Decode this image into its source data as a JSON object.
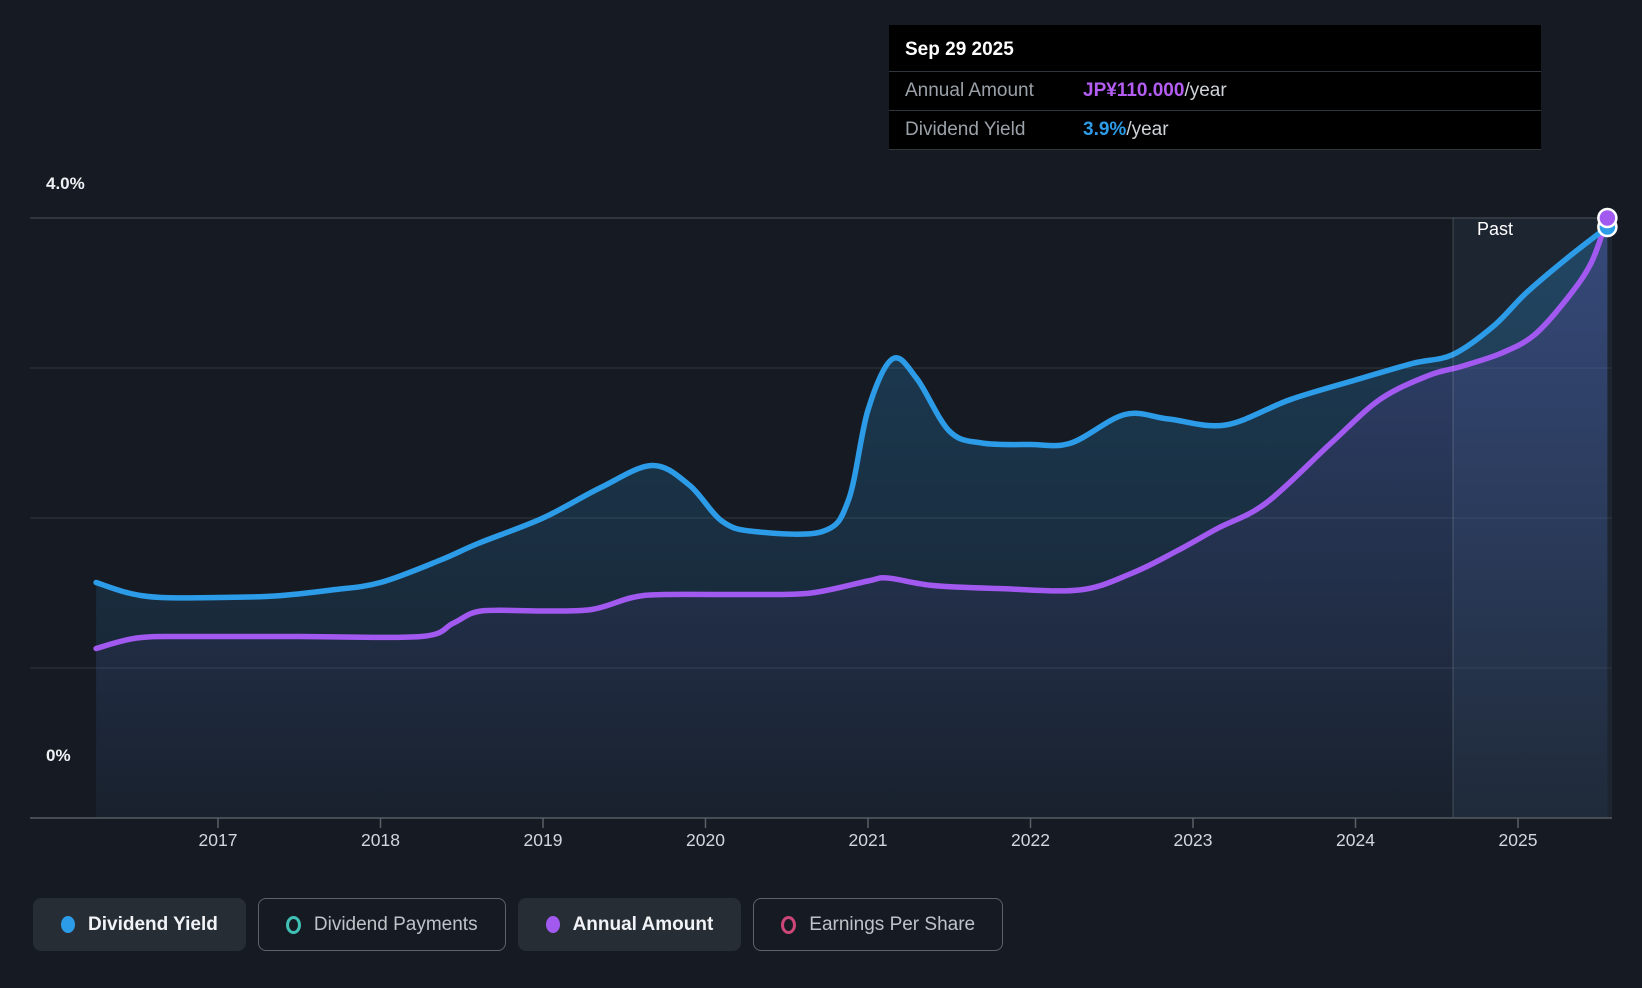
{
  "tooltip": {
    "date": "Sep 29 2025",
    "rows": [
      {
        "label": "Annual Amount",
        "value": "JP¥110.000",
        "suffix": "/year",
        "color": "#b45df2"
      },
      {
        "label": "Dividend Yield",
        "value": "3.9%",
        "suffix": "/year",
        "color": "#2d9ce8"
      }
    ]
  },
  "legend": {
    "items": [
      {
        "label": "Dividend Yield",
        "color": "#2d9ce8",
        "active": true
      },
      {
        "label": "Dividend Payments",
        "color": "#41c0b5",
        "active": false
      },
      {
        "label": "Annual Amount",
        "color": "#a259f0",
        "active": true
      },
      {
        "label": "Earnings Per Share",
        "color": "#cc4778",
        "active": false
      }
    ]
  },
  "colors": {
    "background": "#161b23",
    "tooltip_bg": "#000000",
    "gridline_minor": "#31373e",
    "gridline_top": "#4b5158",
    "axis_line": "#565c63",
    "tick_mark": "#5a6067",
    "past_band_fill": "rgba(130,175,220,0.07)",
    "past_divider": "rgba(255,255,255,0.18)"
  },
  "chart_data": {
    "type": "area",
    "title": "Dividend yield history",
    "past_label": "Past",
    "y_axis": {
      "min": 0,
      "max": 4,
      "unit": "%",
      "top_label": "4.0%",
      "bottom_label": "0%",
      "gridline_pcts": [
        1,
        2,
        3,
        4
      ]
    },
    "x_ticks": [
      "2017",
      "2018",
      "2019",
      "2020",
      "2021",
      "2022",
      "2023",
      "2024",
      "2025"
    ],
    "x_range": [
      2016.25,
      2025.58
    ],
    "past_band_start_year": 2024.6,
    "series": [
      {
        "name": "Dividend Yield",
        "color": "#2d9ce8",
        "unit": "%",
        "end_value_label": "3.9%/year",
        "points": [
          [
            2016.25,
            1.57
          ],
          [
            2016.45,
            1.5
          ],
          [
            2016.65,
            1.47
          ],
          [
            2017.0,
            1.47
          ],
          [
            2017.35,
            1.48
          ],
          [
            2017.7,
            1.52
          ],
          [
            2018.0,
            1.57
          ],
          [
            2018.37,
            1.72
          ],
          [
            2018.6,
            1.83
          ],
          [
            2019.0,
            2.0
          ],
          [
            2019.35,
            2.2
          ],
          [
            2019.67,
            2.35
          ],
          [
            2019.9,
            2.22
          ],
          [
            2020.1,
            1.98
          ],
          [
            2020.3,
            1.91
          ],
          [
            2020.72,
            1.91
          ],
          [
            2020.88,
            2.12
          ],
          [
            2021.0,
            2.72
          ],
          [
            2021.15,
            3.06
          ],
          [
            2021.3,
            2.93
          ],
          [
            2021.5,
            2.58
          ],
          [
            2021.7,
            2.5
          ],
          [
            2022.0,
            2.49
          ],
          [
            2022.25,
            2.5
          ],
          [
            2022.58,
            2.69
          ],
          [
            2022.85,
            2.66
          ],
          [
            2023.2,
            2.62
          ],
          [
            2023.6,
            2.79
          ],
          [
            2024.0,
            2.92
          ],
          [
            2024.35,
            3.03
          ],
          [
            2024.6,
            3.09
          ],
          [
            2024.85,
            3.28
          ],
          [
            2025.05,
            3.5
          ],
          [
            2025.3,
            3.73
          ],
          [
            2025.55,
            3.94
          ]
        ]
      },
      {
        "name": "Annual Amount",
        "color": "#a259f0",
        "unit": "plotted on yield scale",
        "end_value_label": "JP¥110.000/year",
        "points": [
          [
            2016.25,
            1.13
          ],
          [
            2016.5,
            1.2
          ],
          [
            2016.8,
            1.21
          ],
          [
            2017.5,
            1.21
          ],
          [
            2018.25,
            1.21
          ],
          [
            2018.45,
            1.3
          ],
          [
            2018.62,
            1.38
          ],
          [
            2019.0,
            1.38
          ],
          [
            2019.3,
            1.39
          ],
          [
            2019.55,
            1.47
          ],
          [
            2019.75,
            1.49
          ],
          [
            2020.3,
            1.49
          ],
          [
            2020.65,
            1.5
          ],
          [
            2021.0,
            1.58
          ],
          [
            2021.12,
            1.6
          ],
          [
            2021.4,
            1.55
          ],
          [
            2021.8,
            1.53
          ],
          [
            2022.3,
            1.52
          ],
          [
            2022.62,
            1.63
          ],
          [
            2022.9,
            1.78
          ],
          [
            2023.15,
            1.93
          ],
          [
            2023.45,
            2.1
          ],
          [
            2023.85,
            2.5
          ],
          [
            2024.15,
            2.79
          ],
          [
            2024.45,
            2.95
          ],
          [
            2024.65,
            3.01
          ],
          [
            2024.9,
            3.1
          ],
          [
            2025.1,
            3.22
          ],
          [
            2025.3,
            3.46
          ],
          [
            2025.45,
            3.7
          ],
          [
            2025.55,
            4.0
          ]
        ]
      }
    ]
  }
}
